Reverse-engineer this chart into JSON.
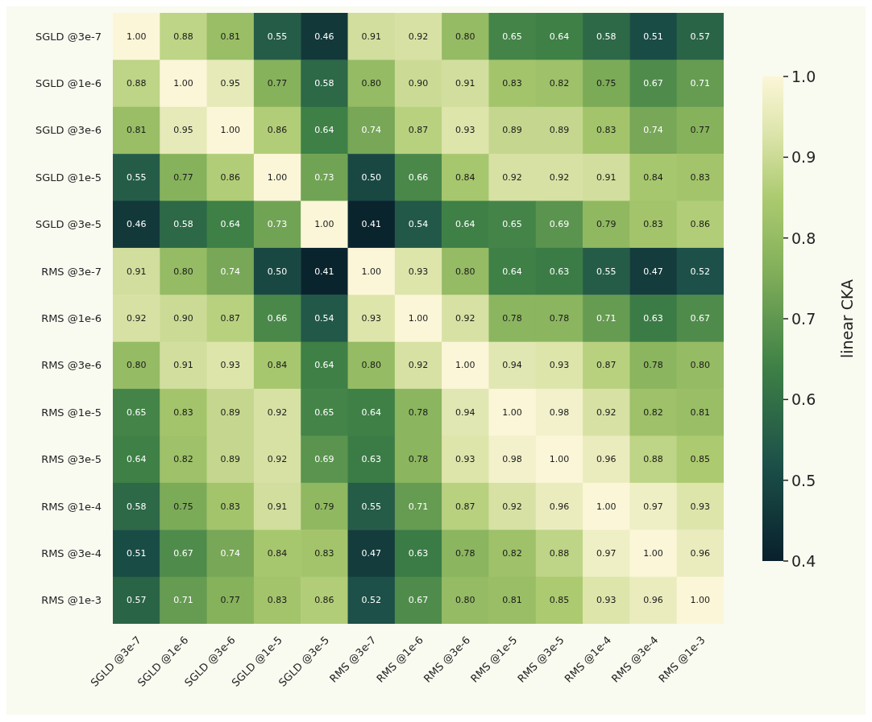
{
  "chart_data": {
    "type": "heatmap",
    "categories": [
      "SGLD @3e-7",
      "SGLD @1e-6",
      "SGLD @3e-6",
      "SGLD @1e-5",
      "SGLD @3e-5",
      "RMS @3e-7",
      "RMS @1e-6",
      "RMS @3e-6",
      "RMS @1e-5",
      "RMS @3e-5",
      "RMS @1e-4",
      "RMS @3e-4",
      "RMS @1e-3"
    ],
    "y_categories": [
      "SGLD @3e-7",
      "SGLD @1e-6",
      "SGLD @3e-6",
      "SGLD @1e-5",
      "SGLD @3e-5",
      "RMS @3e-7",
      "RMS @1e-6",
      "RMS @3e-6",
      "RMS @1e-5",
      "RMS @3e-5",
      "RMS @1e-4",
      "RMS @3e-4",
      "RMS @1e-3"
    ],
    "cells": [
      [
        1.0,
        0.88,
        0.81,
        0.55,
        0.46,
        0.91,
        0.92,
        0.8,
        0.65,
        0.64,
        0.58,
        0.51,
        0.57
      ],
      [
        0.88,
        1.0,
        0.95,
        0.77,
        0.58,
        0.8,
        0.9,
        0.91,
        0.83,
        0.82,
        0.75,
        0.67,
        0.71
      ],
      [
        0.81,
        0.95,
        1.0,
        0.86,
        0.64,
        0.74,
        0.87,
        0.93,
        0.89,
        0.89,
        0.83,
        0.74,
        0.77
      ],
      [
        0.55,
        0.77,
        0.86,
        1.0,
        0.73,
        0.5,
        0.66,
        0.84,
        0.92,
        0.92,
        0.91,
        0.84,
        0.83
      ],
      [
        0.46,
        0.58,
        0.64,
        0.73,
        1.0,
        0.41,
        0.54,
        0.64,
        0.65,
        0.69,
        0.79,
        0.83,
        0.86
      ],
      [
        0.91,
        0.8,
        0.74,
        0.5,
        0.41,
        1.0,
        0.93,
        0.8,
        0.64,
        0.63,
        0.55,
        0.47,
        0.52
      ],
      [
        0.92,
        0.9,
        0.87,
        0.66,
        0.54,
        0.93,
        1.0,
        0.92,
        0.78,
        0.78,
        0.71,
        0.63,
        0.67
      ],
      [
        0.8,
        0.91,
        0.93,
        0.84,
        0.64,
        0.8,
        0.92,
        1.0,
        0.94,
        0.93,
        0.87,
        0.78,
        0.8
      ],
      [
        0.65,
        0.83,
        0.89,
        0.92,
        0.65,
        0.64,
        0.78,
        0.94,
        1.0,
        0.98,
        0.92,
        0.82,
        0.81
      ],
      [
        0.64,
        0.82,
        0.89,
        0.92,
        0.69,
        0.63,
        0.78,
        0.93,
        0.98,
        1.0,
        0.96,
        0.88,
        0.85
      ],
      [
        0.58,
        0.75,
        0.83,
        0.91,
        0.79,
        0.55,
        0.71,
        0.87,
        0.92,
        0.96,
        1.0,
        0.97,
        0.93
      ],
      [
        0.51,
        0.67,
        0.74,
        0.84,
        0.83,
        0.47,
        0.63,
        0.78,
        0.82,
        0.88,
        0.97,
        1.0,
        0.96
      ],
      [
        0.57,
        0.71,
        0.77,
        0.83,
        0.86,
        0.52,
        0.67,
        0.8,
        0.81,
        0.85,
        0.93,
        0.96,
        1.0
      ]
    ],
    "cell_labels": [
      [
        "1.00",
        "0.88",
        "0.81",
        "0.55",
        "0.46",
        "0.91",
        "0.92",
        "0.80",
        "0.65",
        "0.64",
        "0.58",
        "0.51",
        "0.57"
      ],
      [
        "0.88",
        "1.00",
        "0.95",
        "0.77",
        "0.58",
        "0.80",
        "0.90",
        "0.91",
        "0.83",
        "0.82",
        "0.75",
        "0.67",
        "0.71"
      ],
      [
        "0.81",
        "0.95",
        "1.00",
        "0.86",
        "0.64",
        "0.74",
        "0.87",
        "0.93",
        "0.89",
        "0.89",
        "0.83",
        "0.74",
        "0.77"
      ],
      [
        "0.55",
        "0.77",
        "0.86",
        "1.00",
        "0.73",
        "0.50",
        "0.66",
        "0.84",
        "0.92",
        "0.92",
        "0.91",
        "0.84",
        "0.83"
      ],
      [
        "0.46",
        "0.58",
        "0.64",
        "0.73",
        "1.00",
        "0.41",
        "0.54",
        "0.64",
        "0.65",
        "0.69",
        "0.79",
        "0.83",
        "0.86"
      ],
      [
        "0.91",
        "0.80",
        "0.74",
        "0.50",
        "0.41",
        "1.00",
        "0.93",
        "0.80",
        "0.64",
        "0.63",
        "0.55",
        "0.47",
        "0.52"
      ],
      [
        "0.92",
        "0.90",
        "0.87",
        "0.66",
        "0.54",
        "0.93",
        "1.00",
        "0.92",
        "0.78",
        "0.78",
        "0.71",
        "0.63",
        "0.67"
      ],
      [
        "0.80",
        "0.91",
        "0.93",
        "0.84",
        "0.64",
        "0.80",
        "0.92",
        "1.00",
        "0.94",
        "0.93",
        "0.87",
        "0.78",
        "0.80"
      ],
      [
        "0.65",
        "0.83",
        "0.89",
        "0.92",
        "0.65",
        "0.64",
        "0.78",
        "0.94",
        "1.00",
        "0.98",
        "0.92",
        "0.82",
        "0.81"
      ],
      [
        "0.64",
        "0.82",
        "0.89",
        "0.92",
        "0.69",
        "0.63",
        "0.78",
        "0.93",
        "0.98",
        "1.00",
        "0.96",
        "0.88",
        "0.85"
      ],
      [
        "0.58",
        "0.75",
        "0.83",
        "0.91",
        "0.79",
        "0.55",
        "0.71",
        "0.87",
        "0.92",
        "0.96",
        "1.00",
        "0.97",
        "0.93"
      ],
      [
        "0.51",
        "0.67",
        "0.74",
        "0.84",
        "0.83",
        "0.47",
        "0.63",
        "0.78",
        "0.82",
        "0.88",
        "0.97",
        "1.00",
        "0.96"
      ],
      [
        "0.57",
        "0.71",
        "0.77",
        "0.83",
        "0.86",
        "0.52",
        "0.67",
        "0.80",
        "0.81",
        "0.85",
        "0.93",
        "0.96",
        "1.00"
      ]
    ],
    "clabel": "linear CKA",
    "clim": [
      0.4,
      1.0
    ],
    "cticks": [
      0.4,
      0.5,
      0.6,
      0.7,
      0.8,
      0.9,
      {
        "value": 1.0,
        "label": "1.0"
      }
    ]
  }
}
